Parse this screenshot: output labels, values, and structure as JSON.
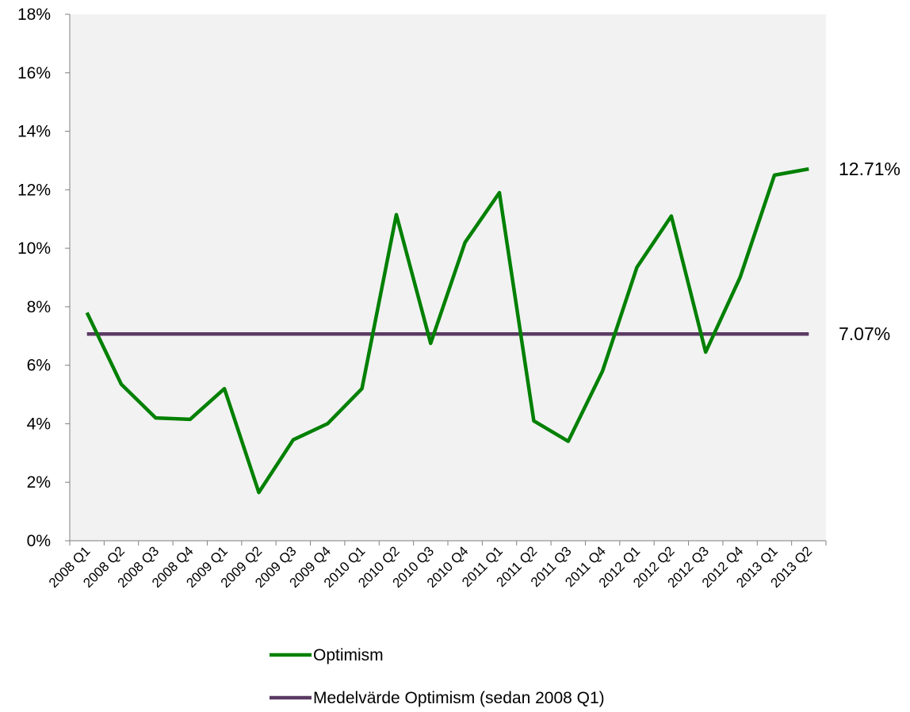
{
  "chart_data": {
    "type": "line",
    "categories": [
      "2008 Q1",
      "2008 Q2",
      "2008 Q3",
      "2008 Q4",
      "2009 Q1",
      "2009 Q2",
      "2009 Q3",
      "2009 Q4",
      "2010 Q1",
      "2010 Q2",
      "2010 Q3",
      "2010 Q4",
      "2011 Q1",
      "2011 Q2",
      "2011 Q3",
      "2011 Q4",
      "2012 Q1",
      "2012 Q2",
      "2012 Q3",
      "2012 Q4",
      "2013 Q1",
      "2013 Q2"
    ],
    "series": [
      {
        "name": "Optimism",
        "color": "#008000",
        "values": [
          7.8,
          5.35,
          4.2,
          4.15,
          5.2,
          1.65,
          3.45,
          4.0,
          5.2,
          11.15,
          6.75,
          10.2,
          11.9,
          4.1,
          3.4,
          5.8,
          9.35,
          11.1,
          6.45,
          9.0,
          12.5,
          12.71
        ],
        "end_label": "12.71%"
      },
      {
        "name": "Medelvärde Optimism (sedan 2008 Q1)",
        "color": "#5a3a63",
        "values": [
          7.07,
          7.07,
          7.07,
          7.07,
          7.07,
          7.07,
          7.07,
          7.07,
          7.07,
          7.07,
          7.07,
          7.07,
          7.07,
          7.07,
          7.07,
          7.07,
          7.07,
          7.07,
          7.07,
          7.07,
          7.07,
          7.07
        ],
        "end_label": "7.07%"
      }
    ],
    "y_ticks": [
      "0%",
      "2%",
      "4%",
      "6%",
      "8%",
      "10%",
      "12%",
      "14%",
      "16%",
      "18%"
    ],
    "ylim": [
      0,
      18
    ],
    "grid": false,
    "legend_position": "bottom",
    "plot_background": "#f2f2f2"
  }
}
